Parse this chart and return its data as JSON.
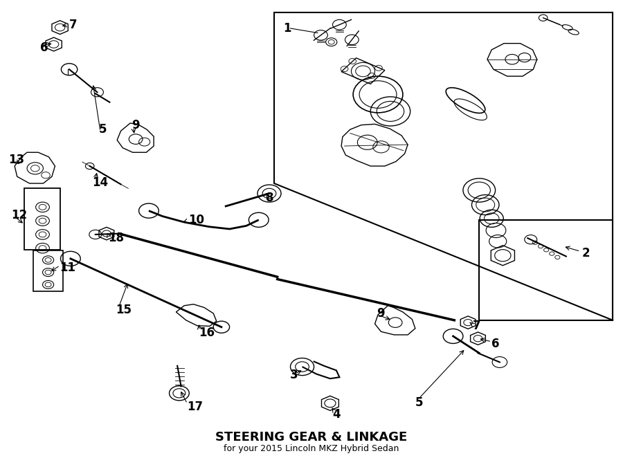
{
  "title": "STEERING GEAR & LINKAGE",
  "subtitle": "for your 2015 Lincoln MKZ Hybrid Sedan",
  "background_color": "#ffffff",
  "line_color": "#000000",
  "text_color": "#000000",
  "fig_width": 9.0,
  "fig_height": 6.62,
  "dpi": 100
}
